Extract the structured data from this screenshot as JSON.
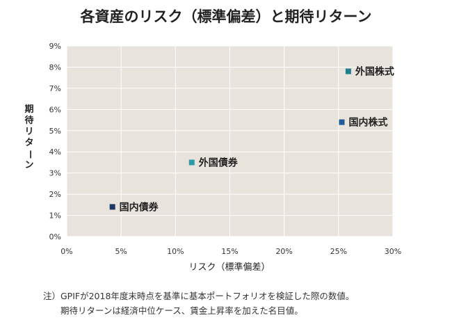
{
  "chart_data": {
    "type": "scatter",
    "title": "各資産のリスク（標準偏差）と期待リターン",
    "xlabel": "リスク（標準偏差）",
    "ylabel": "期待リターン",
    "xlim": [
      0,
      30
    ],
    "ylim": [
      0,
      9
    ],
    "x_ticks": [
      "0%",
      "5%",
      "10%",
      "15%",
      "20%",
      "25%",
      "30%"
    ],
    "y_ticks": [
      "0%",
      "1%",
      "2%",
      "3%",
      "4%",
      "5%",
      "6%",
      "7%",
      "8%",
      "9%"
    ],
    "grid": true,
    "points": [
      {
        "label": "国内債券",
        "x": 4.2,
        "y": 1.4,
        "color": "#1f3864"
      },
      {
        "label": "外国債券",
        "x": 11.5,
        "y": 3.5,
        "color": "#2e9aa8"
      },
      {
        "label": "国内株式",
        "x": 25.3,
        "y": 5.4,
        "color": "#1f5f99"
      },
      {
        "label": "外国株式",
        "x": 25.9,
        "y": 7.8,
        "color": "#1f7f8f"
      }
    ],
    "colors": {
      "plot_background": "#e8e4dc",
      "grid": "#ffffff"
    }
  },
  "notes": [
    "注）GPIFが2018年度末時点を基準に基本ポートフォリオを検証した際の数値。",
    "　　期待リターンは経済中位ケース、賃金上昇率を加えた名目値。"
  ]
}
